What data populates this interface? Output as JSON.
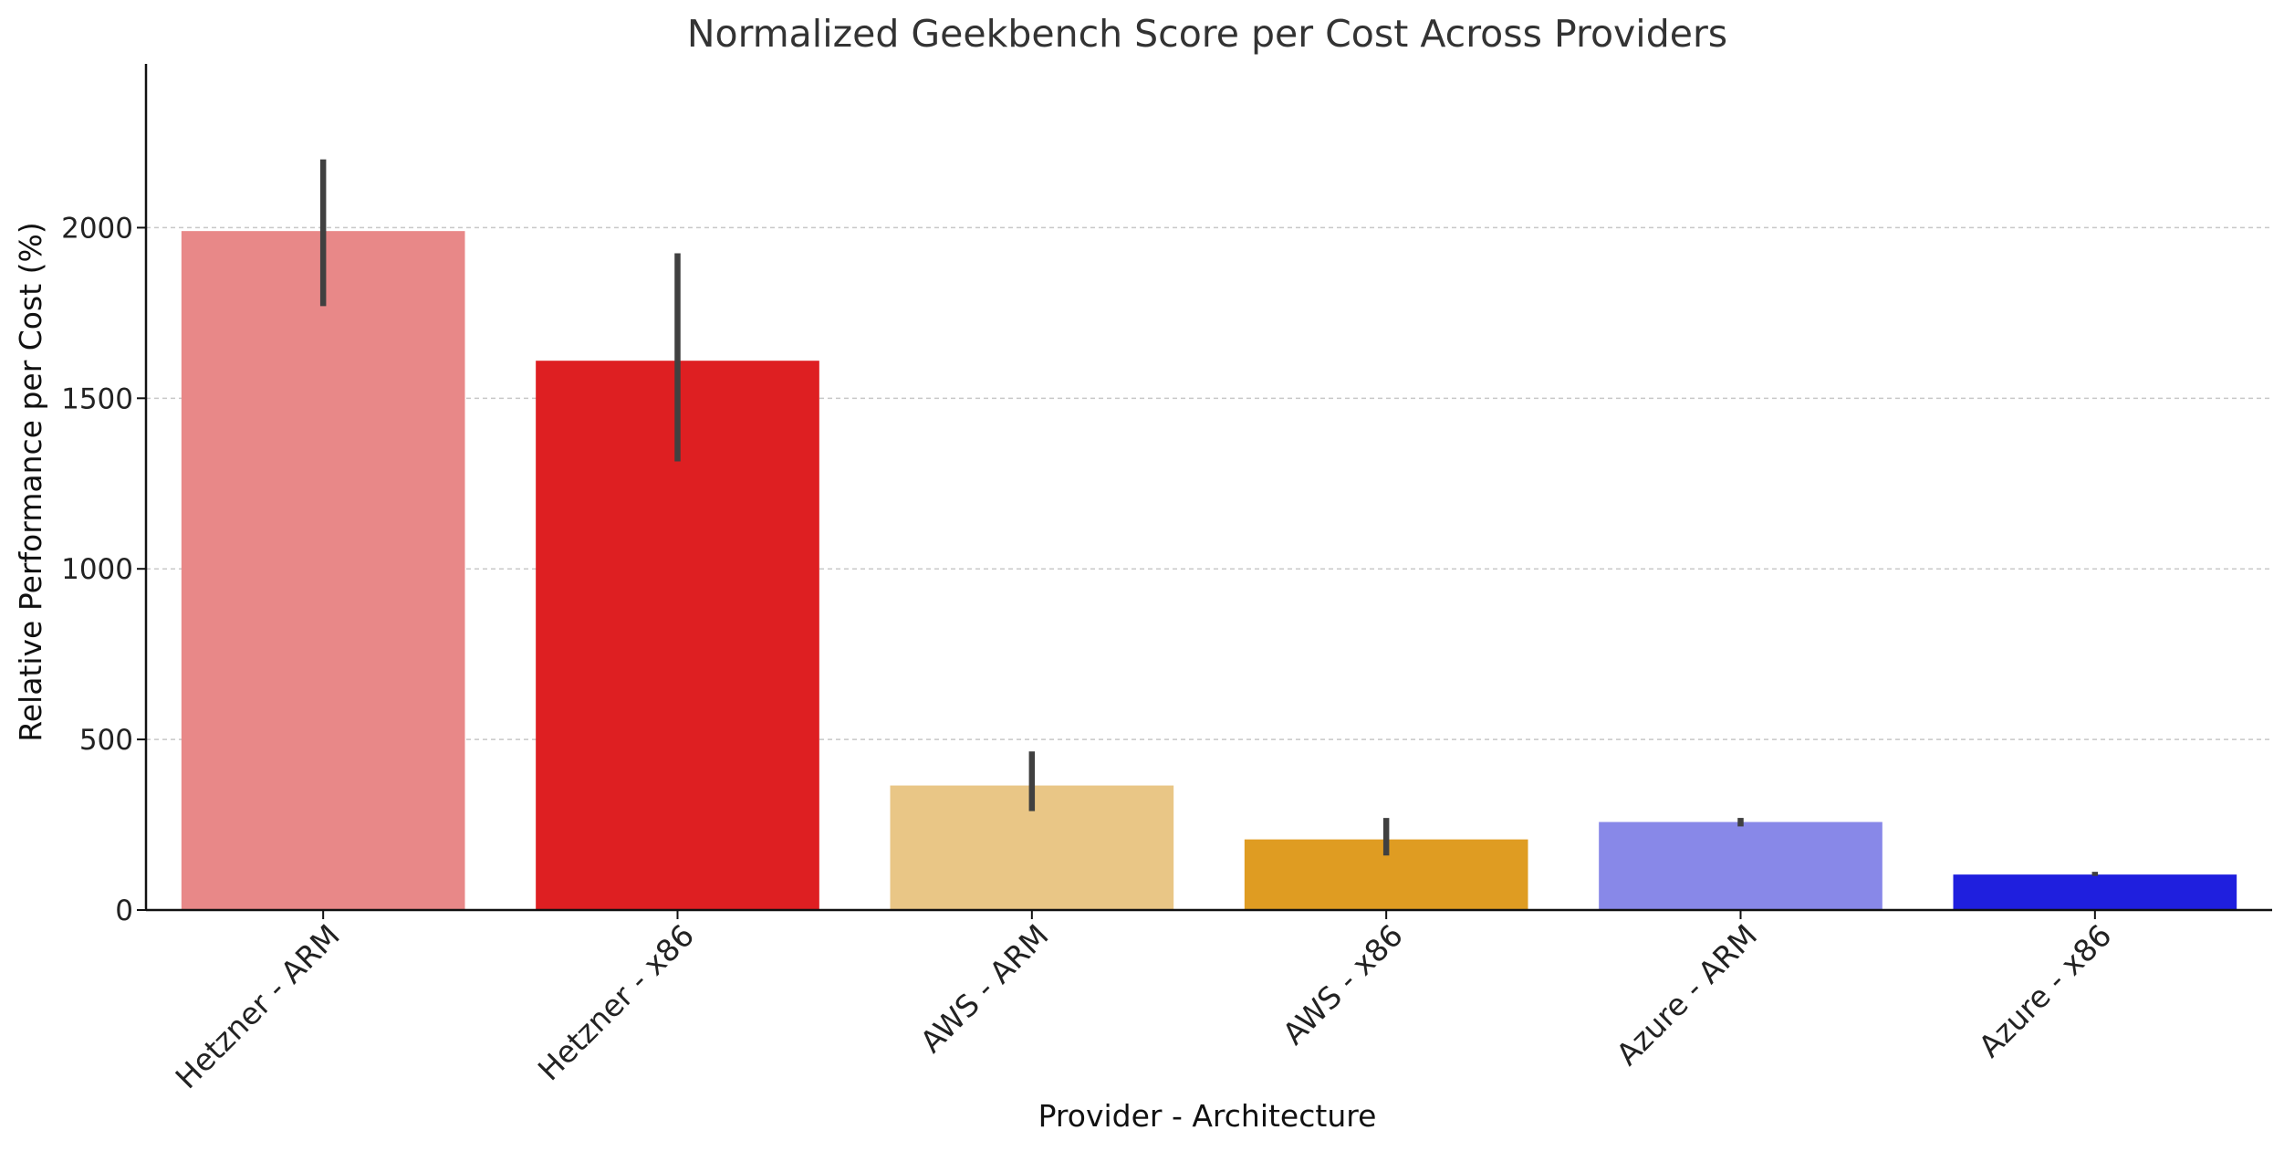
{
  "chart_data": {
    "type": "bar",
    "title": "Normalized Geekbench Score per Cost Across Providers",
    "xlabel": "Provider - Architecture",
    "ylabel": "Relative Performance per Cost (%)",
    "ylim": [
      0,
      2480
    ],
    "yticks": [
      0,
      500,
      1000,
      1500,
      2000
    ],
    "grid": "horizontal dashed",
    "categories": [
      "Hetzner - ARM",
      "Hetzner - x86",
      "AWS - ARM",
      "AWS - x86",
      "Azure - ARM",
      "Azure - x86"
    ],
    "values": [
      1990,
      1610,
      365,
      207,
      258,
      104
    ],
    "error_low": [
      1770,
      1315,
      290,
      160,
      245,
      100
    ],
    "error_high": [
      2200,
      1925,
      465,
      270,
      270,
      112
    ],
    "colors": [
      "#e88888",
      "#de1f22",
      "#e9c686",
      "#df9c22",
      "#8888e8",
      "#1f1fde"
    ],
    "error_color": "#404040"
  }
}
